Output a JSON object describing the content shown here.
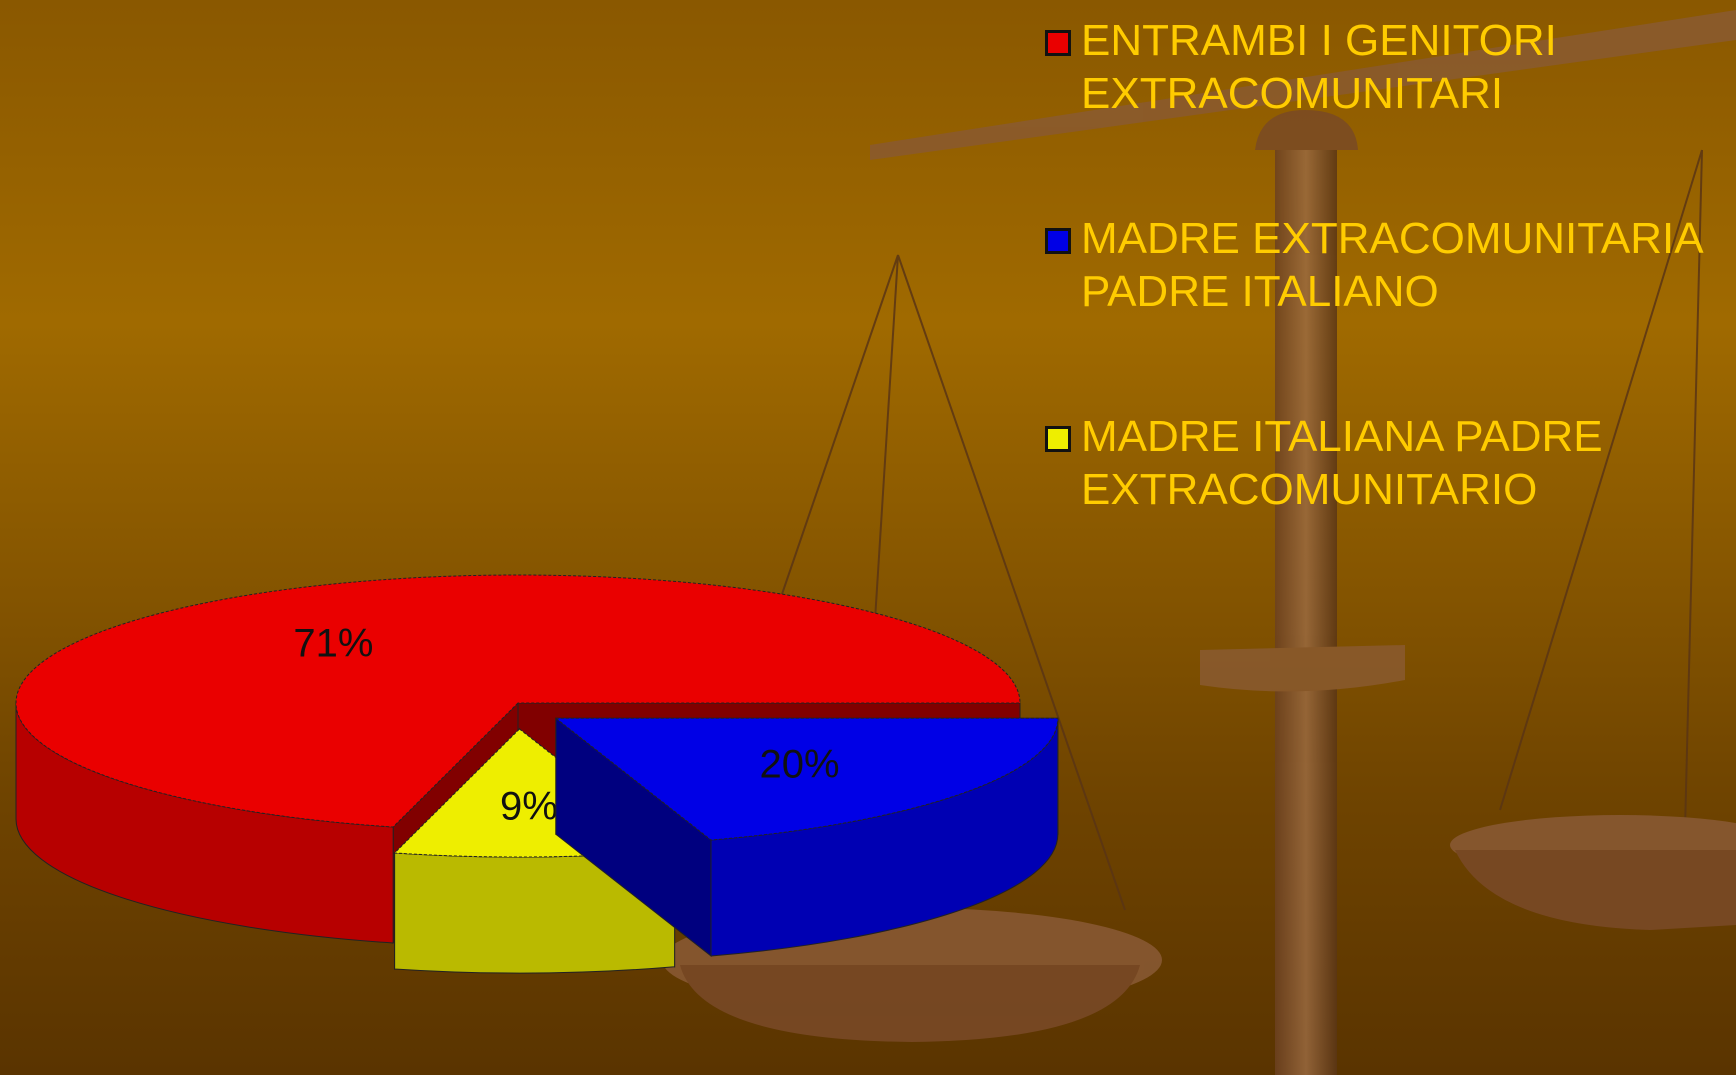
{
  "chart_data": {
    "type": "pie",
    "categories": [
      "ENTRAMBI I GENITORI EXTRACOMUNITARI",
      "MADRE EXTRACOMUNITARIA PADRE ITALIANO",
      "MADRE ITALIANA PADRE EXTRACOMUNITARIO"
    ],
    "values": [
      71,
      20,
      9
    ],
    "value_labels": [
      "71%",
      "20%",
      "9%"
    ],
    "colors": [
      "#ea0000",
      "#0000e6",
      "#eeee00"
    ]
  }
}
